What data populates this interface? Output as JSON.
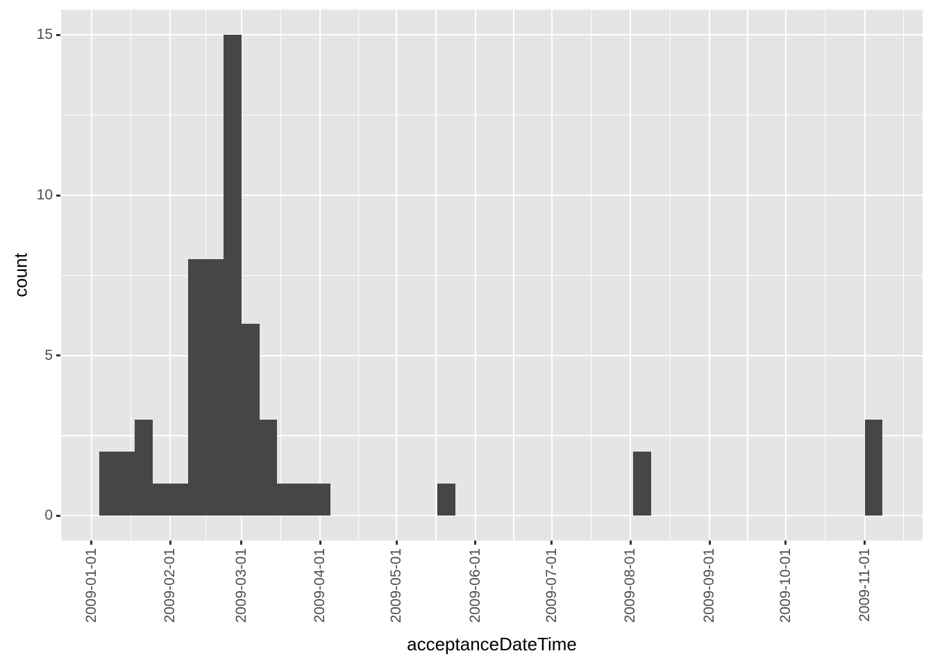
{
  "figure": {
    "x_axis_title": "acceptanceDateTime",
    "y_axis_title": "count"
  },
  "chart_data": {
    "type": "bar",
    "subtype": "histogram",
    "title": "",
    "xlabel": "acceptanceDateTime",
    "ylabel": "count",
    "grid": true,
    "legend_position": "none",
    "bar_color": "#464646",
    "panel_color": "#E5E5E5",
    "gridline_color": "#ffffff",
    "tick_mark_color": "#333333",
    "tick_text_color": "#4D4D4D",
    "ylim": [
      0,
      15
    ],
    "y_major_ticks": [
      0,
      5,
      10,
      15
    ],
    "y_minor_gridlines": [
      2.5,
      7.5,
      12.5
    ],
    "x_major_ticks": [
      "2009-01-01",
      "2009-02-01",
      "2009-03-01",
      "2009-04-01",
      "2009-05-01",
      "2009-06-01",
      "2009-07-01",
      "2009-08-01",
      "2009-09-01",
      "2009-10-01",
      "2009-11-01"
    ],
    "binwidth_days": 7,
    "bins": [
      {
        "start": "2009-01-04",
        "count": 2
      },
      {
        "start": "2009-01-11",
        "count": 2
      },
      {
        "start": "2009-01-18",
        "count": 3
      },
      {
        "start": "2009-01-25",
        "count": 1
      },
      {
        "start": "2009-02-01",
        "count": 1
      },
      {
        "start": "2009-02-08",
        "count": 8
      },
      {
        "start": "2009-02-15",
        "count": 8
      },
      {
        "start": "2009-02-22",
        "count": 15
      },
      {
        "start": "2009-03-01",
        "count": 6
      },
      {
        "start": "2009-03-08",
        "count": 3
      },
      {
        "start": "2009-03-15",
        "count": 1
      },
      {
        "start": "2009-03-22",
        "count": 1
      },
      {
        "start": "2009-03-29",
        "count": 1
      },
      {
        "start": "2009-05-17",
        "count": 1
      },
      {
        "start": "2009-08-02",
        "count": 2
      },
      {
        "start": "2009-11-01",
        "count": 3
      }
    ]
  }
}
